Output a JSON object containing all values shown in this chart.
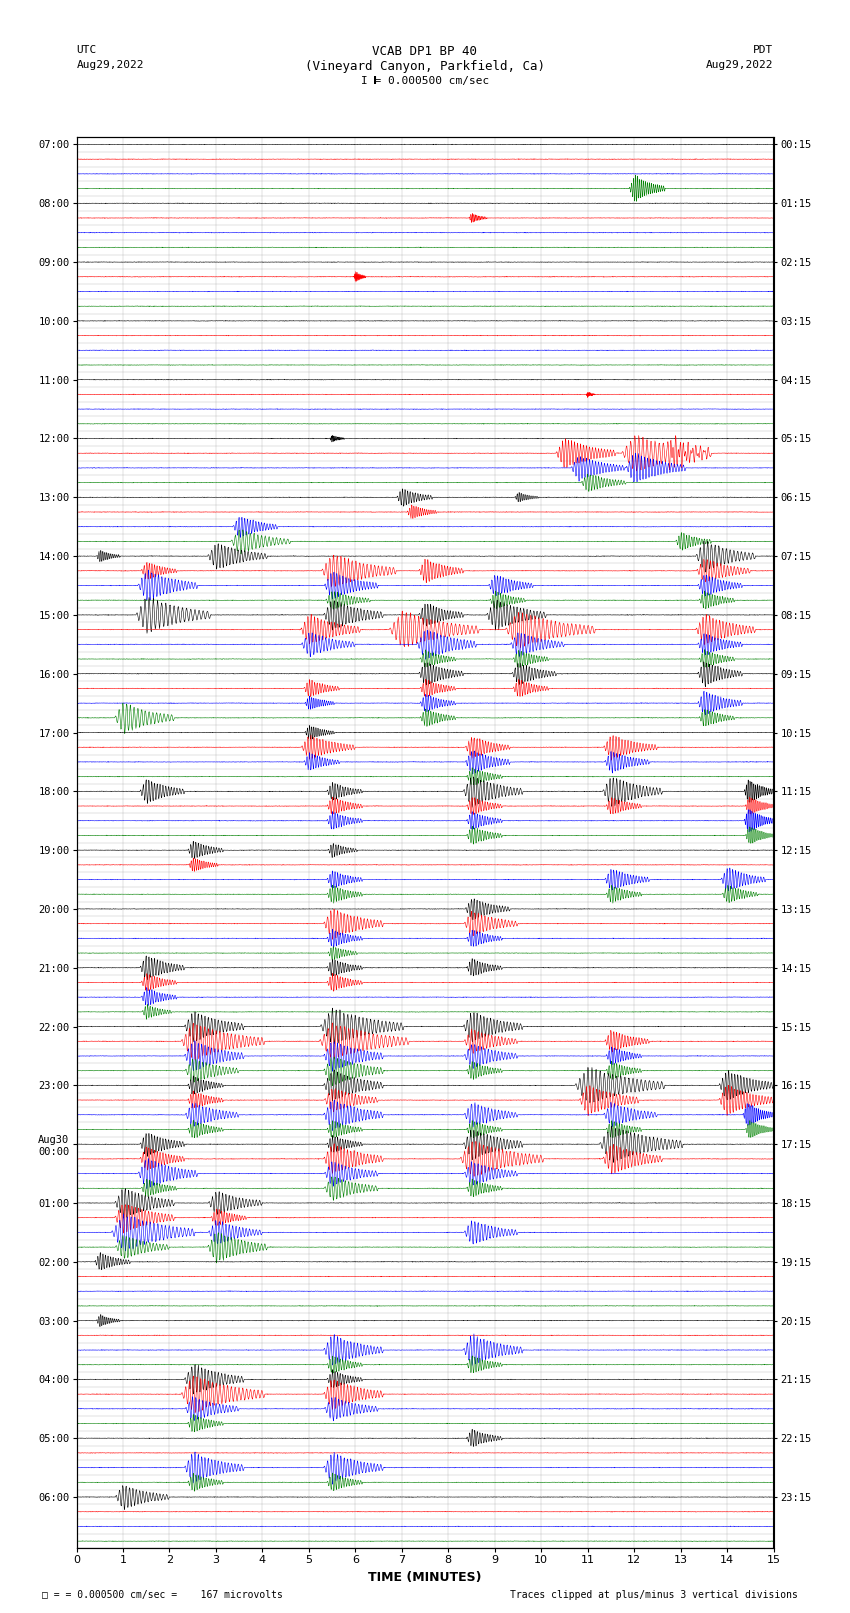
{
  "title_line1": "VCAB DP1 BP 40",
  "title_line2": "(Vineyard Canyon, Parkfield, Ca)",
  "scale_text": "I = 0.000500 cm/sec",
  "left_label_line1": "UTC",
  "left_label_line2": "Aug29,2022",
  "right_label_line1": "PDT",
  "right_label_line2": "Aug29,2022",
  "bottom_label": "TIME (MINUTES)",
  "footer_left": "= 0.000500 cm/sec =    167 microvolts",
  "footer_right": "Traces clipped at plus/minus 3 vertical divisions",
  "xlabel_ticks": [
    0,
    1,
    2,
    3,
    4,
    5,
    6,
    7,
    8,
    9,
    10,
    11,
    12,
    13,
    14,
    15
  ],
  "utc_times": [
    "07:00",
    "",
    "",
    "",
    "08:00",
    "",
    "",
    "",
    "09:00",
    "",
    "",
    "",
    "10:00",
    "",
    "",
    "",
    "11:00",
    "",
    "",
    "",
    "12:00",
    "",
    "",
    "",
    "13:00",
    "",
    "",
    "",
    "14:00",
    "",
    "",
    "",
    "15:00",
    "",
    "",
    "",
    "16:00",
    "",
    "",
    "",
    "17:00",
    "",
    "",
    "",
    "18:00",
    "",
    "",
    "",
    "19:00",
    "",
    "",
    "",
    "20:00",
    "",
    "",
    "",
    "21:00",
    "",
    "",
    "",
    "22:00",
    "",
    "",
    "",
    "23:00",
    "",
    "",
    "",
    "Aug30\n00:00",
    "",
    "",
    "",
    "01:00",
    "",
    "",
    "",
    "02:00",
    "",
    "",
    "",
    "03:00",
    "",
    "",
    "",
    "04:00",
    "",
    "",
    "",
    "05:00",
    "",
    "",
    "",
    "06:00",
    "",
    "",
    ""
  ],
  "pdt_times": [
    "00:15",
    "",
    "",
    "",
    "01:15",
    "",
    "",
    "",
    "02:15",
    "",
    "",
    "",
    "03:15",
    "",
    "",
    "",
    "04:15",
    "",
    "",
    "",
    "05:15",
    "",
    "",
    "",
    "06:15",
    "",
    "",
    "",
    "07:15",
    "",
    "",
    "",
    "08:15",
    "",
    "",
    "",
    "09:15",
    "",
    "",
    "",
    "10:15",
    "",
    "",
    "",
    "11:15",
    "",
    "",
    "",
    "12:15",
    "",
    "",
    "",
    "13:15",
    "",
    "",
    "",
    "14:15",
    "",
    "",
    "",
    "15:15",
    "",
    "",
    "",
    "16:15",
    "",
    "",
    "",
    "17:15",
    "",
    "",
    "",
    "18:15",
    "",
    "",
    "",
    "19:15",
    "",
    "",
    "",
    "20:15",
    "",
    "",
    "",
    "21:15",
    "",
    "",
    "",
    "22:15",
    "",
    "",
    "",
    "23:15",
    "",
    "",
    ""
  ],
  "n_rows": 96,
  "trace_colors": [
    "black",
    "red",
    "blue",
    "green"
  ],
  "bg_color": "white",
  "noise_amp": 0.018,
  "trace_scale": 0.42
}
